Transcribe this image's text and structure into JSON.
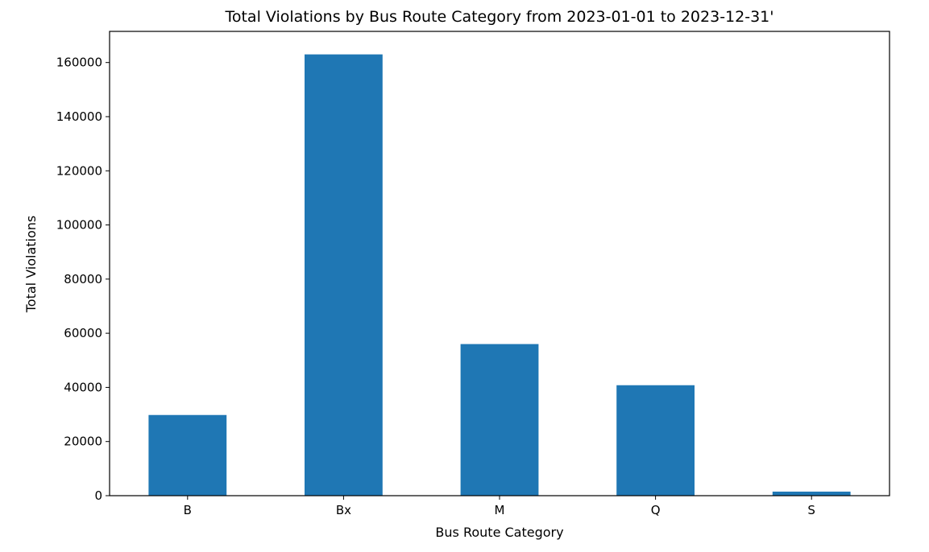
{
  "chart_data": {
    "type": "bar",
    "title": "Total Violations by Bus Route Category from 2023-01-01 to 2023-12-31'",
    "xlabel": "Bus Route Category",
    "ylabel": "Total Violations",
    "categories": [
      "B",
      "Bx",
      "M",
      "Q",
      "S"
    ],
    "values": [
      29800,
      163000,
      56000,
      40800,
      1500
    ],
    "ylim": [
      0,
      171500
    ],
    "yticks": [
      0,
      20000,
      40000,
      60000,
      80000,
      100000,
      120000,
      140000,
      160000
    ],
    "grid": false,
    "legend": "none",
    "bar_color": "#1f77b4"
  }
}
